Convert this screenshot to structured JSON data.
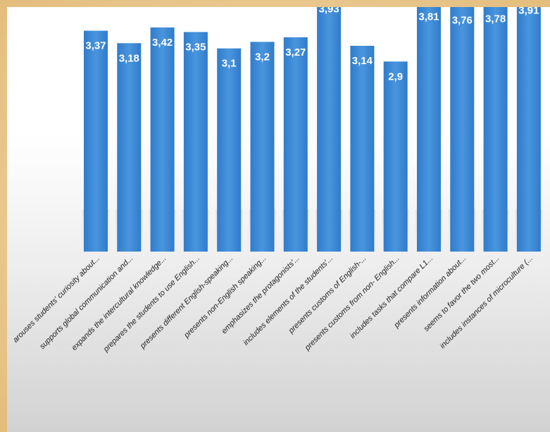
{
  "chart_data": {
    "type": "bar",
    "categories": [
      "arouses students' curiosity about...",
      "supports global communication and...",
      "expands the intercultural knowledge...",
      "prepares the students to use English...",
      "presents different English-speaking...",
      "presents non-English speaking...",
      "emphasizes the protagonists'...",
      "includes elements of the students'...",
      "presents customs of English-...",
      "presents customs from non- English...",
      "includes tasks that compare L1...",
      "presents information about...",
      "seems to favor the two most...",
      "includes instances of microculture (..."
    ],
    "values": [
      3.37,
      3.18,
      3.42,
      3.35,
      3.1,
      3.2,
      3.27,
      3.93,
      3.14,
      2.9,
      3.81,
      3.76,
      3.78,
      3.91
    ],
    "value_labels": [
      "3,37",
      "3,18",
      "3,42",
      "3,35",
      "3,1",
      "3,2",
      "3,27",
      "3,93",
      "3,14",
      "2,9",
      "3,81",
      "3,76",
      "3,78",
      "3,91"
    ],
    "ylim": [
      0,
      4.5
    ],
    "grid": false,
    "bar_color": "#3d88d4",
    "bar_color_dark": "#2a6db5",
    "label_color": "#ffffff"
  }
}
